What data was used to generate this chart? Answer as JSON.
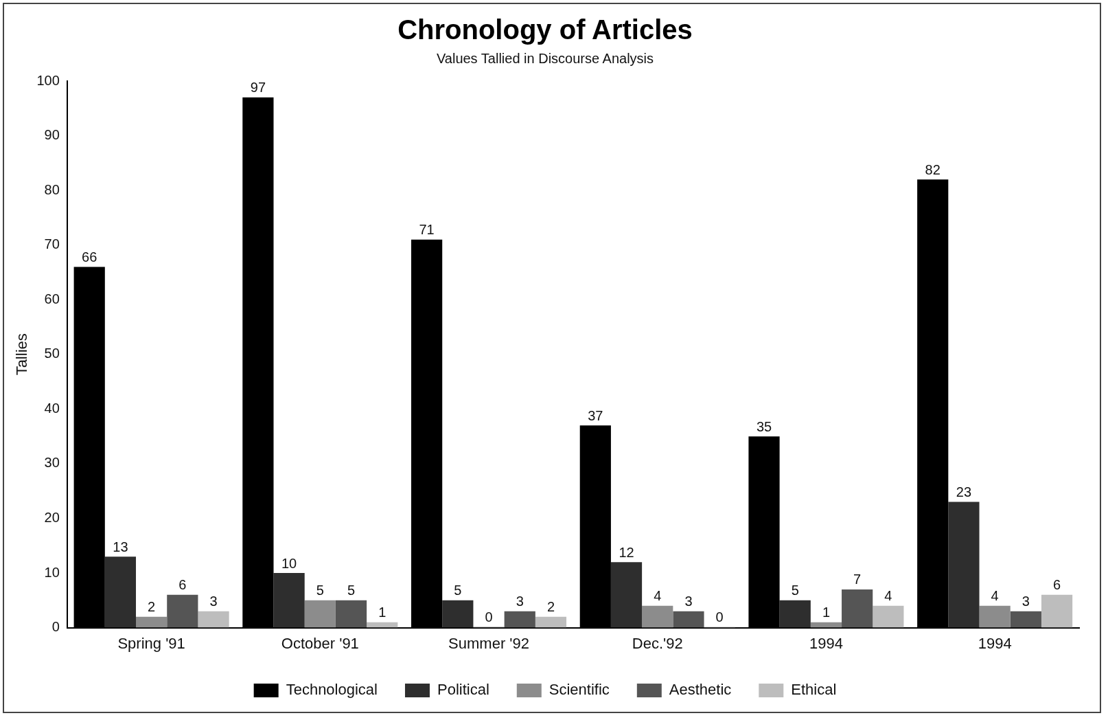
{
  "chart_data": {
    "type": "bar",
    "title": "Chronology of Articles",
    "subtitle": "Values Tallied in Discourse Analysis",
    "ylabel": "Tallies",
    "categories": [
      "Spring '91",
      "October '91",
      "Summer '92",
      "Dec.'92",
      "1994",
      "1994"
    ],
    "series": [
      {
        "name": "Technological",
        "color": "#000000",
        "values": [
          66,
          97,
          71,
          37,
          35,
          82
        ]
      },
      {
        "name": "Political",
        "color": "#2e2e2e",
        "values": [
          13,
          10,
          5,
          12,
          5,
          23
        ]
      },
      {
        "name": "Scientific",
        "color": "#8c8c8c",
        "values": [
          2,
          5,
          0,
          4,
          1,
          4
        ]
      },
      {
        "name": "Aesthetic",
        "color": "#555555",
        "values": [
          6,
          5,
          3,
          3,
          7,
          3
        ]
      },
      {
        "name": "Ethical",
        "color": "#bdbdbd",
        "values": [
          3,
          1,
          2,
          0,
          4,
          6
        ]
      }
    ],
    "ylim": [
      0,
      100
    ],
    "yticks": [
      0,
      10,
      20,
      30,
      40,
      50,
      60,
      70,
      80,
      90,
      100
    ],
    "grid": false,
    "legend": "bottom",
    "data_labels": true
  }
}
